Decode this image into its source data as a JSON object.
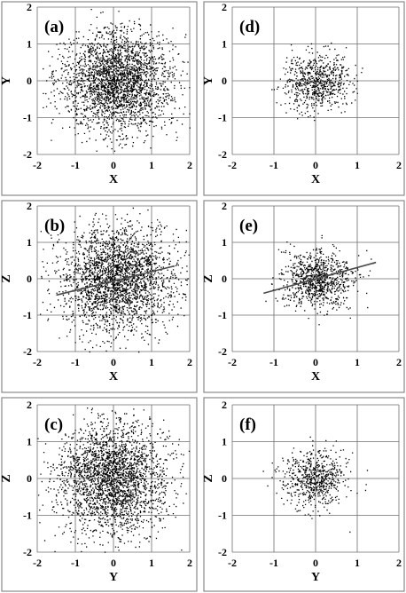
{
  "chart_data": [
    {
      "type": "scatter",
      "panel_label": "(a)",
      "xlabel": "X",
      "ylabel": "Y",
      "xlim": [
        -2,
        2
      ],
      "ylim": [
        -2,
        2
      ],
      "xticks": [
        -2,
        -1,
        0,
        1,
        2
      ],
      "yticks": [
        -2,
        -1,
        0,
        1,
        2
      ],
      "grid": true,
      "points": {
        "n": 2600,
        "center": [
          0.1,
          0.0
        ],
        "sigma": [
          0.72,
          0.68
        ]
      },
      "trend_line": null
    },
    {
      "type": "scatter",
      "panel_label": "(b)",
      "xlabel": "X",
      "ylabel": "Z",
      "xlim": [
        -2,
        2
      ],
      "ylim": [
        -2,
        2
      ],
      "xticks": [
        -2,
        -1,
        0,
        1,
        2
      ],
      "yticks": [
        -2,
        -1,
        0,
        1,
        2
      ],
      "grid": true,
      "points": {
        "n": 2600,
        "center": [
          0.1,
          0.0
        ],
        "sigma": [
          0.75,
          0.72
        ]
      },
      "trend_line": {
        "x": [
          -1.5,
          1.6
        ],
        "y": [
          -0.45,
          0.35
        ]
      }
    },
    {
      "type": "scatter",
      "panel_label": "(c)",
      "xlabel": "Y",
      "ylabel": "Z",
      "xlim": [
        -2,
        2
      ],
      "ylim": [
        -2,
        2
      ],
      "xticks": [
        -2,
        -1,
        0,
        1,
        2
      ],
      "yticks": [
        -2,
        -1,
        0,
        1,
        2
      ],
      "grid": true,
      "points": {
        "n": 2600,
        "center": [
          -0.05,
          0.0
        ],
        "sigma": [
          0.72,
          0.75
        ]
      },
      "trend_line": null
    },
    {
      "type": "scatter",
      "panel_label": "(d)",
      "xlabel": "X",
      "ylabel": "Y",
      "xlim": [
        -2,
        2
      ],
      "ylim": [
        -2,
        2
      ],
      "xticks": [
        -2,
        -1,
        0,
        1,
        2
      ],
      "yticks": [
        -2,
        -1,
        0,
        1,
        2
      ],
      "grid": true,
      "points": {
        "n": 700,
        "center": [
          0.05,
          0.0
        ],
        "sigma": [
          0.38,
          0.38
        ]
      },
      "trend_line": null
    },
    {
      "type": "scatter",
      "panel_label": "(e)",
      "xlabel": "X",
      "ylabel": "Z",
      "xlim": [
        -2,
        2
      ],
      "ylim": [
        -2,
        2
      ],
      "xticks": [
        -2,
        -1,
        0,
        1,
        2
      ],
      "yticks": [
        -2,
        -1,
        0,
        1,
        2
      ],
      "grid": true,
      "points": {
        "n": 900,
        "center": [
          0.05,
          0.0
        ],
        "sigma": [
          0.42,
          0.4
        ]
      },
      "trend_line": {
        "x": [
          -1.25,
          1.45
        ],
        "y": [
          -0.4,
          0.45
        ]
      }
    },
    {
      "type": "scatter",
      "panel_label": "(f)",
      "xlabel": "Y",
      "ylabel": "Z",
      "xlim": [
        -2,
        2
      ],
      "ylim": [
        -2,
        2
      ],
      "xticks": [
        -2,
        -1,
        0,
        1,
        2
      ],
      "yticks": [
        -2,
        -1,
        0,
        1,
        2
      ],
      "grid": true,
      "points": {
        "n": 650,
        "center": [
          -0.05,
          0.0
        ],
        "sigma": [
          0.38,
          0.4
        ]
      },
      "trend_line": null
    }
  ]
}
